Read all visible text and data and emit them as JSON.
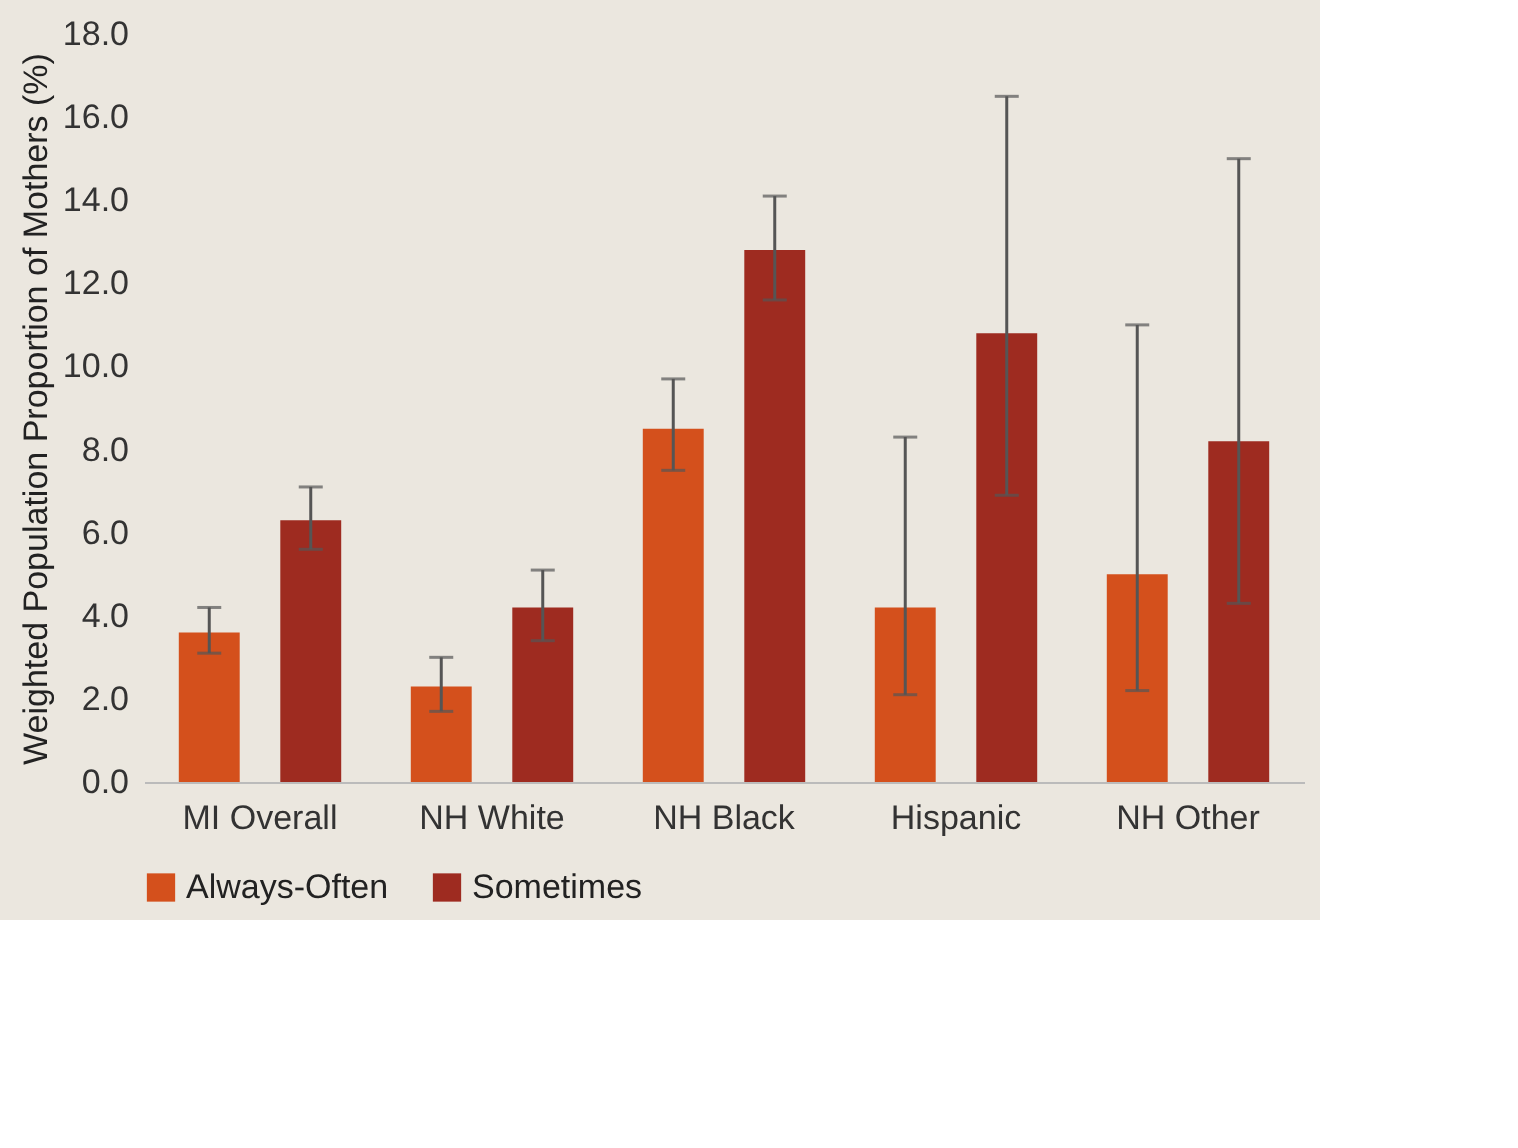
{
  "chart_data": {
    "type": "bar",
    "ylabel": "Weighted Population Proportion of Mothers (%)",
    "categories": [
      "MI Overall",
      "NH White",
      "NH Black",
      "Hispanic",
      "NH Other"
    ],
    "series": [
      {
        "name": "Always-Often",
        "color": "#d4501c",
        "values": [
          3.6,
          2.3,
          8.5,
          4.2,
          5.0
        ],
        "errors": [
          [
            3.1,
            4.2
          ],
          [
            1.7,
            3.0
          ],
          [
            7.5,
            9.7
          ],
          [
            2.1,
            8.3
          ],
          [
            2.2,
            11.0
          ]
        ]
      },
      {
        "name": "Sometimes",
        "color": "#9e2b20",
        "values": [
          6.3,
          4.2,
          12.8,
          10.8,
          8.2
        ],
        "errors": [
          [
            5.6,
            7.1
          ],
          [
            3.4,
            5.1
          ],
          [
            11.6,
            14.1
          ],
          [
            6.9,
            16.5
          ],
          [
            4.3,
            15.0
          ]
        ]
      }
    ],
    "ylim": [
      0,
      18
    ],
    "yticks": [
      {
        "value": 0,
        "label": "0.0"
      },
      {
        "value": 2,
        "label": "2.0"
      },
      {
        "value": 4,
        "label": "4.0"
      },
      {
        "value": 6,
        "label": "6.0"
      },
      {
        "value": 8,
        "label": "8.0"
      },
      {
        "value": 10,
        "label": "10.0"
      },
      {
        "value": 12,
        "label": "12.0"
      },
      {
        "value": 14,
        "label": "14.0"
      },
      {
        "value": 16,
        "label": "16.0"
      },
      {
        "value": 18,
        "label": "18.0"
      }
    ],
    "grid": false,
    "legend": "bottom"
  }
}
